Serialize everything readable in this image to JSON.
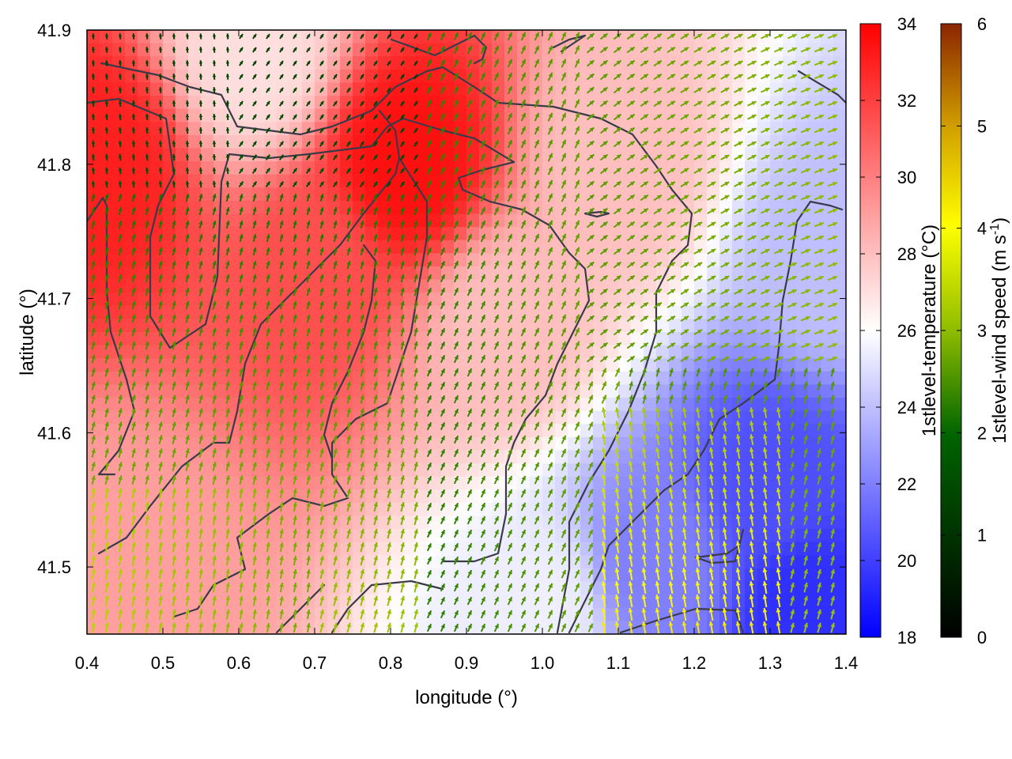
{
  "chart_data": {
    "type": "heatmap",
    "subtype": "temperature field with wind vectors and coastline contours",
    "xlabel": "longitude (°)",
    "ylabel": "latitude (°)",
    "xlim": [
      0.4,
      1.4
    ],
    "ylim": [
      41.45,
      41.9
    ],
    "x_ticks": [
      "0.4",
      "0.5",
      "0.6",
      "0.7",
      "0.8",
      "0.9",
      "1.0",
      "1.1",
      "1.2",
      "1.3",
      "1.4"
    ],
    "y_ticks": [
      "41.5",
      "41.6",
      "41.7",
      "41.8",
      "41.9"
    ],
    "grid": false,
    "temperature_colorbar": {
      "label": "1stlevel-temperature (°C)",
      "range": [
        18,
        34
      ],
      "ticks": [
        "18",
        "20",
        "22",
        "24",
        "26",
        "28",
        "30",
        "32",
        "34"
      ],
      "colors": [
        "#0000ff",
        "#ffffff",
        "#ff0000"
      ]
    },
    "wind_colorbar": {
      "label_main": "1stlevel-wind speed (m s",
      "label_sup": "-1",
      "label_end": ")",
      "range": [
        0,
        6
      ],
      "ticks": [
        "0",
        "1",
        "2",
        "3",
        "4",
        "5",
        "6"
      ],
      "colors": [
        "#000000",
        "#006400",
        "#8fbc00",
        "#ffff00",
        "#d2691e",
        "#8b2500"
      ]
    },
    "temperature_field_hotspots": [
      {
        "lon": 0.82,
        "lat": 41.8,
        "temp": 33.5
      },
      {
        "lon": 0.42,
        "lat": 41.8,
        "temp": 33
      },
      {
        "lon": 0.7,
        "lat": 41.72,
        "temp": 31.5
      },
      {
        "lon": 1.35,
        "lat": 41.47,
        "temp": 19.5
      },
      {
        "lon": 1.3,
        "lat": 41.56,
        "temp": 20.5
      },
      {
        "lon": 1.15,
        "lat": 41.5,
        "temp": 22
      },
      {
        "lon": 1.38,
        "lat": 41.73,
        "temp": 24
      },
      {
        "lon": 0.62,
        "lat": 41.88,
        "temp": 27
      },
      {
        "lon": 0.95,
        "lat": 41.68,
        "temp": 28
      },
      {
        "lon": 1.1,
        "lat": 41.8,
        "temp": 28
      },
      {
        "lon": 1.0,
        "lat": 41.47,
        "temp": 25.5
      },
      {
        "lon": 0.45,
        "lat": 41.5,
        "temp": 29
      }
    ]
  }
}
